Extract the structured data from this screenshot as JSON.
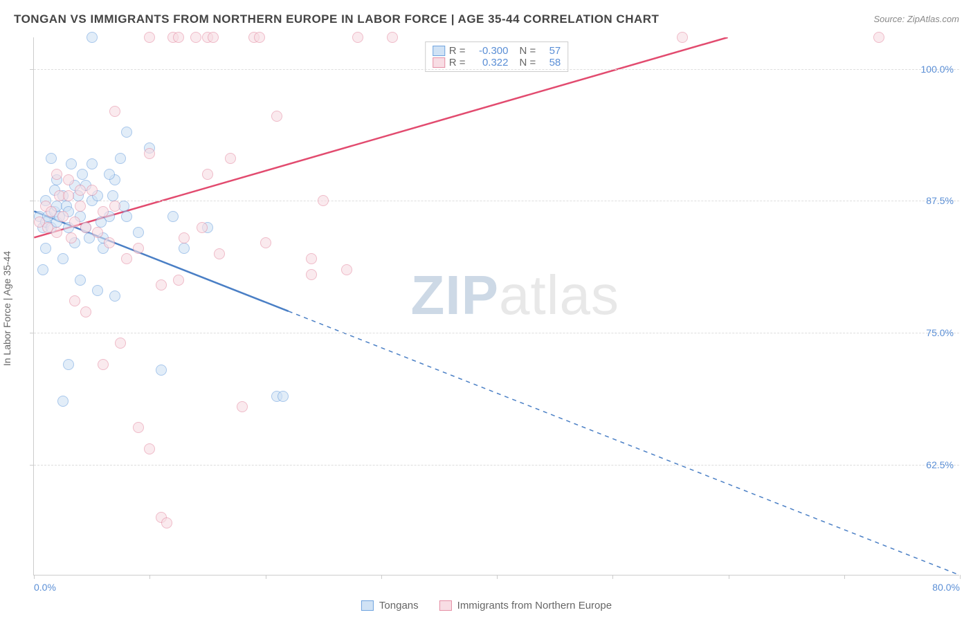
{
  "title": "TONGAN VS IMMIGRANTS FROM NORTHERN EUROPE IN LABOR FORCE | AGE 35-44 CORRELATION CHART",
  "source": "Source: ZipAtlas.com",
  "ylabel": "In Labor Force | Age 35-44",
  "watermark_a": "ZIP",
  "watermark_b": "atlas",
  "chart": {
    "type": "scatter",
    "xlim": [
      0,
      80
    ],
    "ylim": [
      52,
      103
    ],
    "background_color": "#ffffff",
    "grid_color": "#dddddd",
    "y_gridlines": [
      62.5,
      75.0,
      87.5,
      100.0
    ],
    "y_tick_labels": [
      "62.5%",
      "75.0%",
      "87.5%",
      "100.0%"
    ],
    "x_ticks": [
      0,
      10,
      20,
      30,
      40,
      50,
      60,
      70,
      80
    ],
    "x_tick_labels": {
      "0": "0.0%",
      "80": "80.0%"
    },
    "series": [
      {
        "name": "Tongans",
        "color_fill": "#d0e2f5",
        "color_stroke": "#6fa3de",
        "line_color": "#4a7fc5",
        "marker": "circle",
        "marker_size": 16,
        "R": "-0.300",
        "N": "57",
        "regression": {
          "x1": 0,
          "y1": 86.5,
          "x2": 80,
          "y2": 52,
          "solid_until_x": 22
        },
        "points": [
          [
            0.5,
            86
          ],
          [
            0.8,
            85
          ],
          [
            1,
            87.5
          ],
          [
            1,
            85.5
          ],
          [
            1.2,
            86
          ],
          [
            1.5,
            85
          ],
          [
            1.8,
            86.5
          ],
          [
            2,
            85.5
          ],
          [
            2,
            87
          ],
          [
            2.2,
            86
          ],
          [
            2.5,
            88
          ],
          [
            2.8,
            87
          ],
          [
            3,
            86.5
          ],
          [
            3,
            85
          ],
          [
            3.5,
            89
          ],
          [
            3.8,
            88
          ],
          [
            4,
            86
          ],
          [
            4.2,
            90
          ],
          [
            4.5,
            85
          ],
          [
            5,
            87.5
          ],
          [
            5,
            91
          ],
          [
            5.5,
            88
          ],
          [
            6,
            84
          ],
          [
            6.5,
            86
          ],
          [
            7,
            89.5
          ],
          [
            7.5,
            91.5
          ],
          [
            8,
            94
          ],
          [
            5,
            103
          ],
          [
            4,
            80
          ],
          [
            3,
            72
          ],
          [
            6,
            83
          ],
          [
            8,
            86
          ],
          [
            2.5,
            68.5
          ],
          [
            5.5,
            79
          ],
          [
            11,
            71.5
          ],
          [
            12,
            86
          ],
          [
            13,
            83
          ],
          [
            7,
            78.5
          ],
          [
            10,
            92.5
          ],
          [
            9,
            84.5
          ],
          [
            2.5,
            82
          ],
          [
            3.5,
            83.5
          ],
          [
            4.5,
            89
          ],
          [
            6.5,
            90
          ],
          [
            1.5,
            91.5
          ],
          [
            2,
            89.5
          ],
          [
            1,
            83
          ],
          [
            0.8,
            81
          ],
          [
            15,
            85
          ],
          [
            21,
            69
          ],
          [
            21.5,
            69
          ],
          [
            1.8,
            88.5
          ],
          [
            3.2,
            91
          ],
          [
            4.8,
            84
          ],
          [
            5.8,
            85.5
          ],
          [
            6.8,
            88
          ],
          [
            7.8,
            87
          ]
        ]
      },
      {
        "name": "Immigrants from Northern Europe",
        "color_fill": "#f8dde4",
        "color_stroke": "#e58fa5",
        "line_color": "#e24b6f",
        "marker": "circle",
        "marker_size": 16,
        "R": "0.322",
        "N": "58",
        "regression": {
          "x1": 0,
          "y1": 84,
          "x2": 60,
          "y2": 103,
          "solid_until_x": 60
        },
        "points": [
          [
            0.5,
            85.5
          ],
          [
            1,
            87
          ],
          [
            1.2,
            85
          ],
          [
            1.5,
            86.5
          ],
          [
            2,
            84.5
          ],
          [
            2.2,
            88
          ],
          [
            2.5,
            86
          ],
          [
            3,
            88
          ],
          [
            3.2,
            84
          ],
          [
            3.5,
            85.5
          ],
          [
            4,
            87
          ],
          [
            4.5,
            85
          ],
          [
            5,
            88.5
          ],
          [
            5.5,
            84.5
          ],
          [
            6,
            86.5
          ],
          [
            6.5,
            83.5
          ],
          [
            7,
            87
          ],
          [
            2,
            90
          ],
          [
            3,
            89.5
          ],
          [
            4,
            88.5
          ],
          [
            10,
            103
          ],
          [
            12,
            103
          ],
          [
            12.5,
            103
          ],
          [
            14,
            103
          ],
          [
            15,
            103
          ],
          [
            15.5,
            103
          ],
          [
            19,
            103
          ],
          [
            19.5,
            103
          ],
          [
            28,
            103
          ],
          [
            56,
            103
          ],
          [
            73,
            103
          ],
          [
            3.5,
            78
          ],
          [
            4.5,
            77
          ],
          [
            7,
            96
          ],
          [
            8,
            82
          ],
          [
            9,
            83
          ],
          [
            10,
            92
          ],
          [
            11,
            79.5
          ],
          [
            13,
            84
          ],
          [
            15,
            90
          ],
          [
            16,
            82.5
          ],
          [
            17,
            91.5
          ],
          [
            18,
            68
          ],
          [
            21,
            95.5
          ],
          [
            24,
            80.5
          ],
          [
            25,
            87.5
          ],
          [
            24,
            82
          ],
          [
            27,
            81
          ],
          [
            9,
            66
          ],
          [
            10,
            64
          ],
          [
            11,
            57.5
          ],
          [
            11.5,
            57
          ],
          [
            6,
            72
          ],
          [
            31,
            103
          ],
          [
            7.5,
            74
          ],
          [
            14.5,
            85
          ],
          [
            12.5,
            80
          ],
          [
            20,
            83.5
          ]
        ]
      }
    ]
  },
  "legend": {
    "rows": [
      {
        "swatch": "blue",
        "r_label": "R =",
        "r_val": "-0.300",
        "n_label": "N =",
        "n_val": "57"
      },
      {
        "swatch": "pink",
        "r_label": "R =",
        "r_val": "0.322",
        "n_label": "N =",
        "n_val": "58"
      }
    ]
  },
  "bottom_legend": [
    {
      "swatch": "blue",
      "label": "Tongans"
    },
    {
      "swatch": "pink",
      "label": "Immigrants from Northern Europe"
    }
  ]
}
